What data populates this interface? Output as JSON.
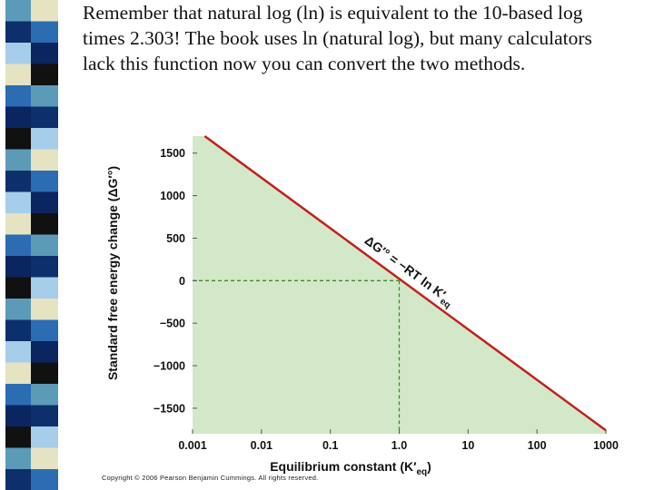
{
  "slide": {
    "paragraph": "Remember that natural log (ln) is equivalent to the 10-based log times 2.303!  The book uses ln (natural log), but many calculators lack this function now you can convert the two methods.",
    "copyright": "Copyright © 2006 Pearson Benjamin Cummings. All rights reserved."
  },
  "decor": {
    "strip_colors": [
      "#5b9bb8",
      "#0d2f6b",
      "#a6cdea",
      "#e6e3c2",
      "#2b6cb3",
      "#0a2560",
      "#111111"
    ]
  },
  "chart_data": {
    "type": "line",
    "title": "",
    "xlabel": "Equilibrium constant (K′eq)",
    "ylabel": "Standard free energy change (ΔG′°)",
    "x_scale": "log",
    "x_ticks": [
      "0.001",
      "0.01",
      "0.1",
      "1.0",
      "10",
      "100",
      "1000"
    ],
    "y_ticks": [
      "1500",
      "1000",
      "500",
      "0",
      "−500",
      "−1000",
      "−1500"
    ],
    "xlim": [
      0.001,
      1000
    ],
    "ylim": [
      -1800,
      1700
    ],
    "series": [
      {
        "x": [
          0.0015,
          1000
        ],
        "y": [
          1700,
          -1760
        ],
        "color": "#c0201e"
      }
    ],
    "fill_color": "#d3e8c8",
    "reference_point": {
      "x": 1.0,
      "y": 0
    },
    "annotation": "ΔG′° = −RT ln K′eq",
    "grid": false
  }
}
